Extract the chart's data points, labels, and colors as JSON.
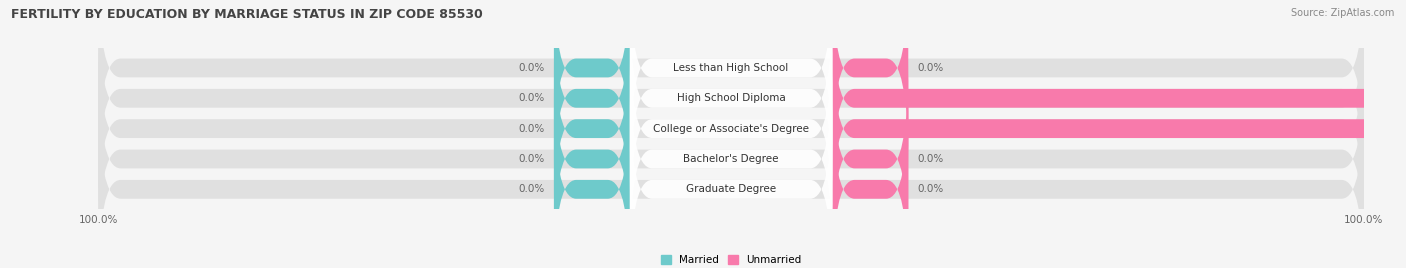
{
  "title": "FERTILITY BY EDUCATION BY MARRIAGE STATUS IN ZIP CODE 85530",
  "source": "Source: ZipAtlas.com",
  "categories": [
    "Less than High School",
    "High School Diploma",
    "College or Associate's Degree",
    "Bachelor's Degree",
    "Graduate Degree"
  ],
  "married_values": [
    0.0,
    0.0,
    0.0,
    0.0,
    0.0
  ],
  "unmarried_values": [
    0.0,
    100.0,
    100.0,
    0.0,
    0.0
  ],
  "married_color": "#6ecacb",
  "unmarried_color": "#f87aab",
  "married_label": "Married",
  "unmarried_label": "Unmarried",
  "bar_bg_color": "#e0e0e0",
  "fig_bg_color": "#f5f5f5",
  "title_fontsize": 9,
  "label_fontsize": 7.5,
  "tick_fontsize": 7.5,
  "source_fontsize": 7
}
